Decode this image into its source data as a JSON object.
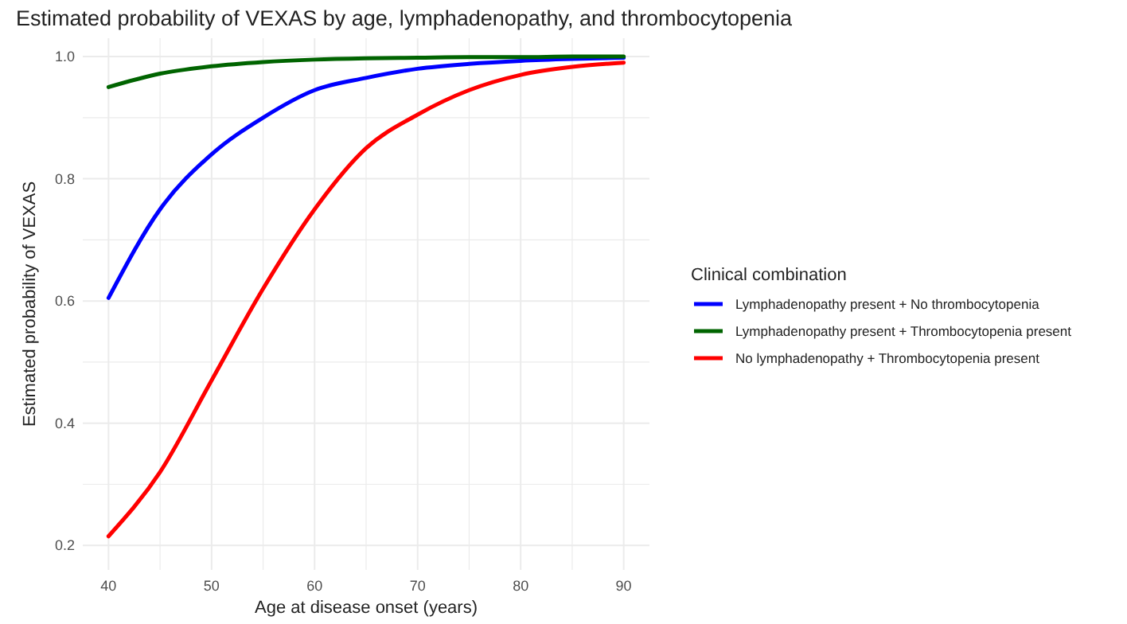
{
  "chart_data": {
    "type": "line",
    "title": "Estimated probability of VEXAS by age, lymphadenopathy, and thrombocytopenia",
    "xlabel": "Age at disease onset (years)",
    "ylabel": "Estimated probability of VEXAS",
    "legend_title": "Clinical combination",
    "legend": "right",
    "grid": true,
    "line_style": "solid",
    "marker": "none",
    "x": [
      40,
      45,
      50,
      55,
      60,
      65,
      70,
      75,
      80,
      85,
      90
    ],
    "series": [
      {
        "name": "Lymphadenopathy present + No thrombocytopenia",
        "color": "#0000ff",
        "values": [
          0.605,
          0.75,
          0.84,
          0.9,
          0.945,
          0.965,
          0.98,
          0.988,
          0.993,
          0.996,
          0.998
        ]
      },
      {
        "name": "Lymphadenopathy present + Thrombocytopenia present",
        "color": "#006400",
        "values": [
          0.95,
          0.972,
          0.984,
          0.991,
          0.995,
          0.997,
          0.998,
          0.999,
          0.999,
          1.0,
          1.0
        ]
      },
      {
        "name": "No lymphadenopathy + Thrombocytopenia present",
        "color": "#ff0000",
        "values": [
          0.215,
          0.32,
          0.47,
          0.62,
          0.75,
          0.85,
          0.905,
          0.945,
          0.97,
          0.983,
          0.99
        ]
      }
    ],
    "xlim": [
      37.5,
      92.5
    ],
    "xticks": [
      40,
      {
        "value": 45,
        "label": null
      },
      50,
      {
        "value": 55,
        "label": null
      },
      60,
      {
        "value": 65,
        "label": null
      },
      70,
      {
        "value": 75,
        "label": null
      },
      80,
      {
        "value": 85,
        "label": null
      },
      90
    ],
    "ylim": [
      0.16,
      1.03
    ],
    "yticks": [
      {
        "value": 0.2,
        "label": "0.2"
      },
      {
        "value": 0.3,
        "label": null
      },
      {
        "value": 0.4,
        "label": "0.4"
      },
      {
        "value": 0.5,
        "label": null
      },
      {
        "value": 0.6,
        "label": "0.6"
      },
      {
        "value": 0.7,
        "label": null
      },
      {
        "value": 0.8,
        "label": "0.8"
      },
      {
        "value": 0.9,
        "label": null
      },
      {
        "value": 1.0,
        "label": "1.0"
      }
    ]
  }
}
